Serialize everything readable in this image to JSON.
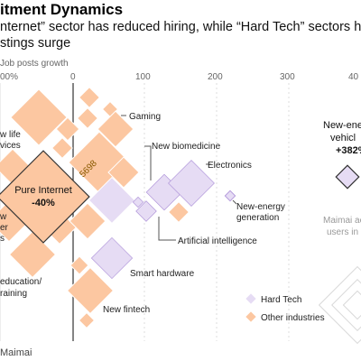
{
  "title": "itment Dynamics",
  "subtitle_line1": "nternet” sector has reduced hiring, while “Hard Tech” sectors hav",
  "subtitle_line2": "stings surge",
  "source": "Maimai",
  "colors": {
    "hard_tech_fill": "#e6dcf4",
    "hard_tech_stroke": "#a88bd6",
    "other_fill": "#fcc7a1",
    "other_stroke": "#f2a066",
    "axis": "#bbbbbb",
    "zero": "#333333"
  },
  "chart_data": {
    "type": "scatter",
    "xlabel": "Job posts growth",
    "x_ticks": [
      "00%",
      "0",
      "100",
      "200",
      "300",
      "40"
    ],
    "xlim": [
      -100,
      400
    ],
    "legend": [
      "Hard Tech",
      "Other industries"
    ],
    "legend_position": "bottom-right",
    "highlight": {
      "label_line1": "Pure Internet",
      "label_line2": "-40%",
      "x": -40,
      "users_count": "5698"
    },
    "callout": {
      "label_line1": "New-ene",
      "label_line2": "vehicl",
      "label_line3": "+382%",
      "x": 382
    },
    "size_note": {
      "line1": "Maimai ac",
      "line2": "users in"
    },
    "labels": {
      "gaming": "Gaming",
      "life_services": "w life\nvices",
      "new_biomedicine": "New biomedicine",
      "electronics": "Electronics",
      "new_energy_generation": "New-energy\ngeneration",
      "artificial_intelligence": "Artificial intelligence",
      "smart_hardware": "Smart hardware",
      "new_fintech": "New fintech",
      "education_training": "education/\nraining",
      "partial_left": "w\ner\ns"
    },
    "series": [
      {
        "name": "Hard Tech",
        "points": [
          {
            "x": 55,
            "y_rank": 210,
            "size": "large"
          },
          {
            "x": 88,
            "y_rank": 222,
            "size": "medium"
          },
          {
            "x": 120,
            "y_rank": 215,
            "size": "medium"
          },
          {
            "x": 148,
            "y_rank": 203,
            "size": "large"
          },
          {
            "x": 218,
            "y_rank": 217,
            "size": "tiny"
          },
          {
            "x": 382,
            "y_rank": 196,
            "size": "small"
          },
          {
            "x": 100,
            "y_rank": 232,
            "size": "small"
          },
          {
            "x": 48,
            "y_rank": 284,
            "size": "medium"
          }
        ]
      },
      {
        "name": "Other industries",
        "points": [
          {
            "x": -48,
            "y_rank": 130,
            "size": "large"
          },
          {
            "x": -40,
            "y_rank": 220,
            "size": "xlarge"
          },
          {
            "x": 25,
            "y_rank": 180,
            "size": "large"
          },
          {
            "x": 60,
            "y_rank": 145,
            "size": "medium"
          },
          {
            "x": 20,
            "y_rank": 320,
            "size": "large"
          },
          {
            "x": -60,
            "y_rank": 280,
            "size": "large"
          },
          {
            "x": 70,
            "y_rank": 190,
            "size": "medium"
          },
          {
            "x": 10,
            "y_rank": 255,
            "size": "medium"
          },
          {
            "x": 145,
            "y_rank": 232,
            "size": "small"
          }
        ]
      }
    ]
  }
}
